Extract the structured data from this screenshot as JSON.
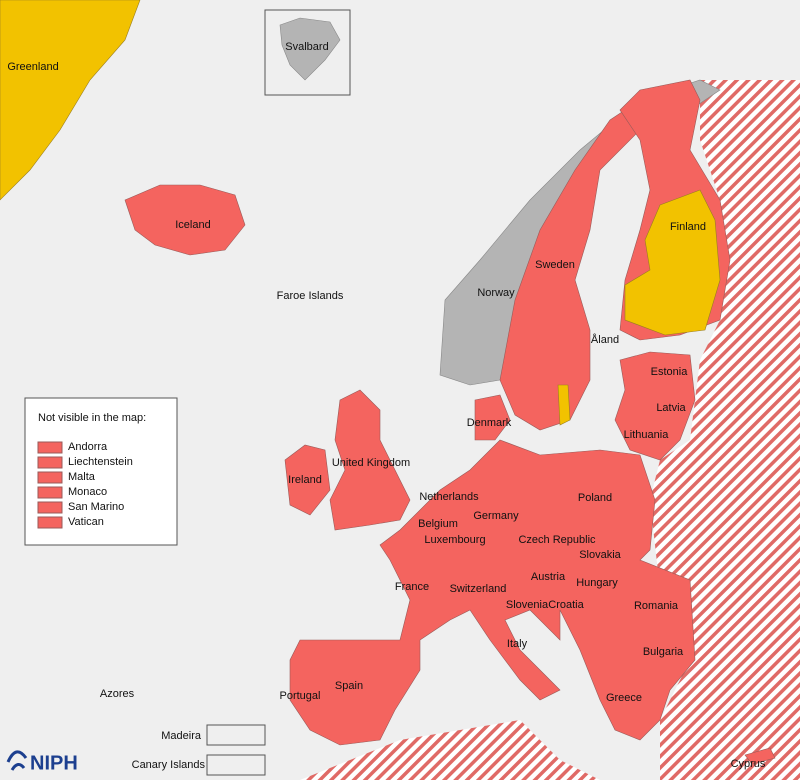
{
  "map": {
    "labels": [
      "Greenland",
      "Svalbard",
      "Iceland",
      "Faroe Islands",
      "Norway",
      "Sweden",
      "Finland",
      "Åland",
      "Estonia",
      "Latvia",
      "Lithuania",
      "Denmark",
      "United Kingdom",
      "Ireland",
      "Netherlands",
      "Germany",
      "Poland",
      "Belgium",
      "Luxembourg",
      "Czech Republic",
      "Slovakia",
      "France",
      "Switzerland",
      "Austria",
      "Hungary",
      "Slovenia",
      "Croatia",
      "Romania",
      "Italy",
      "Bulgaria",
      "Spain",
      "Portugal",
      "Greece",
      "Azores",
      "Madeira",
      "Canary Islands",
      "Cyprus"
    ],
    "legend": {
      "title": "Not visible in the map:",
      "items": [
        "Andorra",
        "Liechtenstein",
        "Malta",
        "Monaco",
        "San Marino",
        "Vatican"
      ]
    },
    "logo": "NIPH"
  }
}
